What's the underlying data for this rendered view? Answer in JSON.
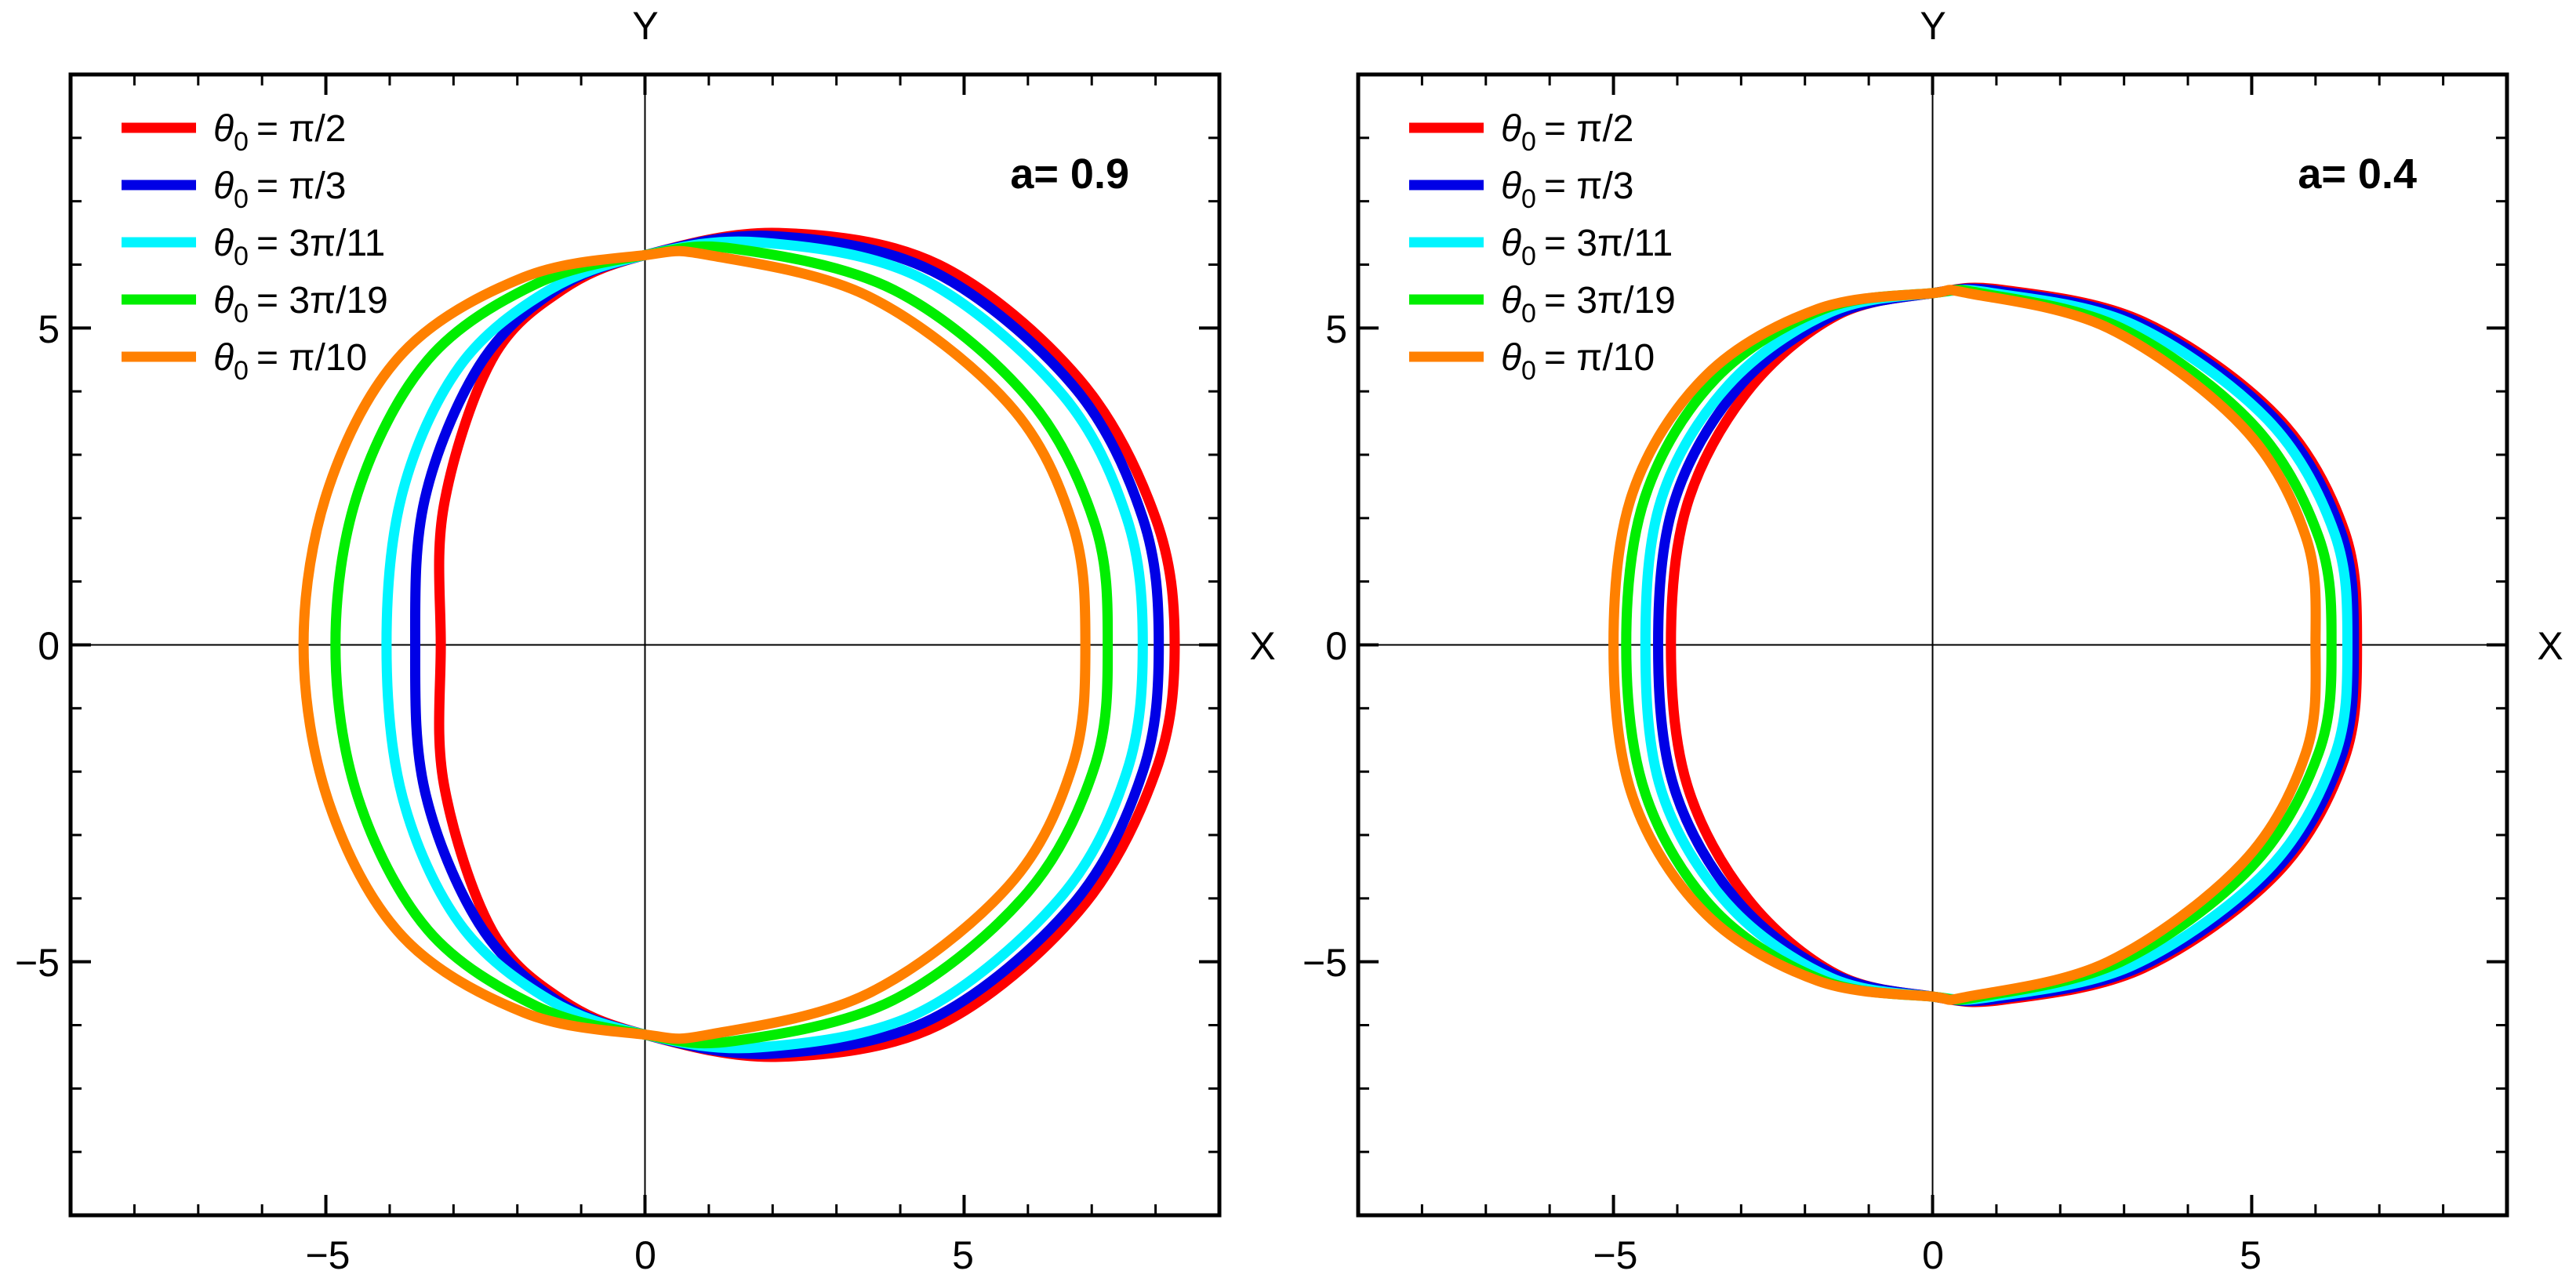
{
  "chart_data": [
    {
      "type": "line",
      "annotation": "a= 0.9",
      "xlabel": "X",
      "ylabel": "Y",
      "xlim": [
        -9,
        9
      ],
      "ylim": [
        -9,
        9
      ],
      "xticks": [
        -5,
        0,
        5
      ],
      "yticks": [
        -5,
        0,
        5
      ],
      "tick_labels_x": [
        "−5",
        "0",
        "5"
      ],
      "tick_labels_y": [
        "−5",
        "0",
        "5"
      ],
      "grid": false,
      "legend_position": "top-left",
      "series": [
        {
          "label_sym": "θ",
          "label_sub": "0",
          "label_val": "= π/2",
          "color": "#ff0000",
          "points": [
            [
              -3.2,
              0
            ],
            [
              -3.15,
              2.2
            ],
            [
              -2.4,
              4.5
            ],
            [
              -1.3,
              5.6
            ],
            [
              0,
              6.15
            ],
            [
              2.1,
              6.5
            ],
            [
              4.6,
              6.0
            ],
            [
              6.8,
              4.2
            ],
            [
              8.0,
              2.0
            ],
            [
              8.3,
              0
            ],
            [
              8.0,
              -2.0
            ],
            [
              6.8,
              -4.2
            ],
            [
              4.6,
              -6.0
            ],
            [
              2.1,
              -6.5
            ],
            [
              0,
              -6.15
            ],
            [
              -1.3,
              -5.6
            ],
            [
              -2.4,
              -4.5
            ],
            [
              -3.15,
              -2.2
            ],
            [
              -3.2,
              0
            ]
          ]
        },
        {
          "label_sym": "θ",
          "label_sub": "0",
          "label_val": "= π/3",
          "color": "#0000e6",
          "points": [
            [
              -3.6,
              0
            ],
            [
              -3.45,
              2.3
            ],
            [
              -2.6,
              4.4
            ],
            [
              -1.4,
              5.6
            ],
            [
              0,
              6.15
            ],
            [
              2.0,
              6.45
            ],
            [
              4.5,
              5.9
            ],
            [
              6.7,
              4.1
            ],
            [
              7.8,
              2.0
            ],
            [
              8.05,
              0
            ],
            [
              7.8,
              -2.0
            ],
            [
              6.7,
              -4.1
            ],
            [
              4.5,
              -5.9
            ],
            [
              2.0,
              -6.45
            ],
            [
              0,
              -6.15
            ],
            [
              -1.4,
              -5.6
            ],
            [
              -2.6,
              -4.4
            ],
            [
              -3.45,
              -2.3
            ],
            [
              -3.6,
              0
            ]
          ]
        },
        {
          "label_sym": "θ",
          "label_sub": "0",
          "label_val": "= 3π/11",
          "color": "#00f5ff",
          "points": [
            [
              -4.05,
              0
            ],
            [
              -3.8,
              2.4
            ],
            [
              -2.9,
              4.4
            ],
            [
              -1.5,
              5.6
            ],
            [
              0,
              6.15
            ],
            [
              1.8,
              6.35
            ],
            [
              4.3,
              5.8
            ],
            [
              6.5,
              4.0
            ],
            [
              7.55,
              2.0
            ],
            [
              7.8,
              0
            ],
            [
              7.55,
              -2.0
            ],
            [
              6.5,
              -4.0
            ],
            [
              4.3,
              -5.8
            ],
            [
              1.8,
              -6.35
            ],
            [
              0,
              -6.15
            ],
            [
              -1.5,
              -5.6
            ],
            [
              -2.9,
              -4.4
            ],
            [
              -3.8,
              -2.4
            ],
            [
              -4.05,
              0
            ]
          ]
        },
        {
          "label_sym": "θ",
          "label_sub": "0",
          "label_val": "= 3π/19",
          "color": "#00ee00",
          "points": [
            [
              -4.85,
              0
            ],
            [
              -4.5,
              2.4
            ],
            [
              -3.4,
              4.5
            ],
            [
              -1.7,
              5.7
            ],
            [
              0,
              6.15
            ],
            [
              1.4,
              6.25
            ],
            [
              3.9,
              5.6
            ],
            [
              6.0,
              3.9
            ],
            [
              7.05,
              1.9
            ],
            [
              7.25,
              0
            ],
            [
              7.05,
              -1.9
            ],
            [
              6.0,
              -3.9
            ],
            [
              3.9,
              -5.6
            ],
            [
              1.4,
              -6.25
            ],
            [
              0,
              -6.15
            ],
            [
              -1.7,
              -5.7
            ],
            [
              -3.4,
              -4.5
            ],
            [
              -4.5,
              -2.4
            ],
            [
              -4.85,
              0
            ]
          ]
        },
        {
          "label_sym": "θ",
          "label_sub": "0",
          "label_val": "= π/10",
          "color": "#ff8000",
          "points": [
            [
              -5.35,
              0
            ],
            [
              -4.95,
              2.5
            ],
            [
              -3.8,
              4.6
            ],
            [
              -1.9,
              5.8
            ],
            [
              0,
              6.15
            ],
            [
              1.0,
              6.15
            ],
            [
              3.5,
              5.5
            ],
            [
              5.7,
              3.8
            ],
            [
              6.7,
              1.9
            ],
            [
              6.9,
              0
            ],
            [
              6.7,
              -1.9
            ],
            [
              5.7,
              -3.8
            ],
            [
              3.5,
              -5.5
            ],
            [
              1.0,
              -6.15
            ],
            [
              0,
              -6.15
            ],
            [
              -1.9,
              -5.8
            ],
            [
              -3.8,
              -4.6
            ],
            [
              -4.95,
              -2.5
            ],
            [
              -5.35,
              0
            ]
          ]
        }
      ]
    },
    {
      "type": "line",
      "annotation": "a= 0.4",
      "xlabel": "X",
      "ylabel": "Y",
      "xlim": [
        -9,
        9
      ],
      "ylim": [
        -9,
        9
      ],
      "xticks": [
        -5,
        0,
        5
      ],
      "yticks": [
        -5,
        0,
        5
      ],
      "tick_labels_x": [
        "−5",
        "0",
        "5"
      ],
      "tick_labels_y": [
        "−5",
        "0",
        "5"
      ],
      "grid": false,
      "legend_position": "top-left",
      "series": [
        {
          "label_sym": "θ",
          "label_sub": "0",
          "label_val": "= π/2",
          "color": "#ff0000",
          "points": [
            [
              -4.1,
              0
            ],
            [
              -3.85,
              2.2
            ],
            [
              -2.9,
              4.0
            ],
            [
              -1.5,
              5.2
            ],
            [
              0,
              5.55
            ],
            [
              1.1,
              5.6
            ],
            [
              3.3,
              5.1
            ],
            [
              5.4,
              3.6
            ],
            [
              6.45,
              1.8
            ],
            [
              6.65,
              0
            ],
            [
              6.45,
              -1.8
            ],
            [
              5.4,
              -3.6
            ],
            [
              3.3,
              -5.1
            ],
            [
              1.1,
              -5.6
            ],
            [
              0,
              -5.55
            ],
            [
              -1.5,
              -5.2
            ],
            [
              -2.9,
              -4.0
            ],
            [
              -3.85,
              -2.2
            ],
            [
              -4.1,
              0
            ]
          ]
        },
        {
          "label_sym": "θ",
          "label_sub": "0",
          "label_val": "= π/3",
          "color": "#0000e6",
          "points": [
            [
              -4.3,
              0
            ],
            [
              -4.05,
              2.25
            ],
            [
              -3.05,
              4.05
            ],
            [
              -1.55,
              5.2
            ],
            [
              0,
              5.55
            ],
            [
              1.05,
              5.58
            ],
            [
              3.25,
              5.08
            ],
            [
              5.35,
              3.58
            ],
            [
              6.4,
              1.78
            ],
            [
              6.6,
              0
            ],
            [
              6.4,
              -1.78
            ],
            [
              5.35,
              -3.58
            ],
            [
              3.25,
              -5.08
            ],
            [
              1.05,
              -5.58
            ],
            [
              0,
              -5.55
            ],
            [
              -1.55,
              -5.2
            ],
            [
              -3.05,
              -4.05
            ],
            [
              -4.05,
              -2.25
            ],
            [
              -4.3,
              0
            ]
          ]
        },
        {
          "label_sym": "θ",
          "label_sub": "0",
          "label_val": "= 3π/11",
          "color": "#00f5ff",
          "points": [
            [
              -4.5,
              0
            ],
            [
              -4.25,
              2.3
            ],
            [
              -3.2,
              4.1
            ],
            [
              -1.6,
              5.25
            ],
            [
              0,
              5.55
            ],
            [
              0.95,
              5.55
            ],
            [
              3.15,
              5.05
            ],
            [
              5.25,
              3.55
            ],
            [
              6.3,
              1.75
            ],
            [
              6.5,
              0
            ],
            [
              6.3,
              -1.75
            ],
            [
              5.25,
              -3.55
            ],
            [
              3.15,
              -5.05
            ],
            [
              0.95,
              -5.55
            ],
            [
              0,
              -5.55
            ],
            [
              -1.6,
              -5.25
            ],
            [
              -3.2,
              -4.1
            ],
            [
              -4.25,
              -2.3
            ],
            [
              -4.5,
              0
            ]
          ]
        },
        {
          "label_sym": "θ",
          "label_sub": "0",
          "label_val": "= 3π/19",
          "color": "#00ee00",
          "points": [
            [
              -4.8,
              0
            ],
            [
              -4.5,
              2.35
            ],
            [
              -3.4,
              4.2
            ],
            [
              -1.7,
              5.3
            ],
            [
              0,
              5.55
            ],
            [
              0.75,
              5.55
            ],
            [
              2.95,
              5.0
            ],
            [
              5.0,
              3.5
            ],
            [
              6.05,
              1.7
            ],
            [
              6.25,
              0
            ],
            [
              6.05,
              -1.7
            ],
            [
              5.0,
              -3.5
            ],
            [
              2.95,
              -5.0
            ],
            [
              0.75,
              -5.55
            ],
            [
              0,
              -5.55
            ],
            [
              -1.7,
              -5.3
            ],
            [
              -3.4,
              -4.2
            ],
            [
              -4.5,
              -2.35
            ],
            [
              -4.8,
              0
            ]
          ]
        },
        {
          "label_sym": "θ",
          "label_sub": "0",
          "label_val": "= π/10",
          "color": "#ff8000",
          "points": [
            [
              -5.0,
              0
            ],
            [
              -4.7,
              2.4
            ],
            [
              -3.55,
              4.25
            ],
            [
              -1.8,
              5.3
            ],
            [
              0,
              5.55
            ],
            [
              0.55,
              5.55
            ],
            [
              2.75,
              5.0
            ],
            [
              4.85,
              3.45
            ],
            [
              5.85,
              1.7
            ],
            [
              6.0,
              0
            ],
            [
              5.85,
              -1.7
            ],
            [
              4.85,
              -3.45
            ],
            [
              2.75,
              -5.0
            ],
            [
              0.55,
              -5.55
            ],
            [
              0,
              -5.55
            ],
            [
              -1.8,
              -5.3
            ],
            [
              -3.55,
              -4.25
            ],
            [
              -4.7,
              -2.4
            ],
            [
              -5.0,
              0
            ]
          ]
        }
      ]
    }
  ]
}
